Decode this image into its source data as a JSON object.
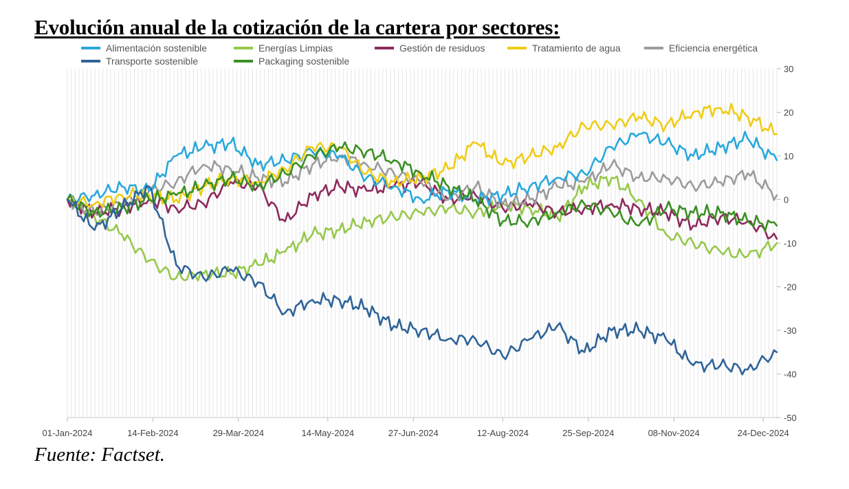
{
  "title": "Evolución anual de la cotización de la cartera por sectores:",
  "source": "Fuente: Factset.",
  "chart_data": {
    "type": "line",
    "title": "",
    "xlabel": "",
    "ylabel": "",
    "ylim": [
      -50,
      30
    ],
    "y_ticks": [
      30,
      20,
      10,
      0,
      -10,
      -20,
      -30,
      -40,
      -50
    ],
    "x_ticks": [
      "01-Jan-2024",
      "14-Feb-2024",
      "29-Mar-2024",
      "14-May-2024",
      "27-Jun-2024",
      "12-Aug-2024",
      "25-Sep-2024",
      "08-Nov-2024",
      "24-Dec-2024"
    ],
    "x_range": [
      "01-Jan-2024",
      "31-Dec-2024"
    ],
    "grid": "vertical",
    "legend_position": "top",
    "x": [
      "01-Jan-2024",
      "15-Jan-2024",
      "29-Jan-2024",
      "12-Feb-2024",
      "26-Feb-2024",
      "11-Mar-2024",
      "25-Mar-2024",
      "08-Apr-2024",
      "22-Apr-2024",
      "06-May-2024",
      "20-May-2024",
      "03-Jun-2024",
      "17-Jun-2024",
      "01-Jul-2024",
      "15-Jul-2024",
      "29-Jul-2024",
      "12-Aug-2024",
      "26-Aug-2024",
      "09-Sep-2024",
      "23-Sep-2024",
      "07-Oct-2024",
      "21-Oct-2024",
      "04-Nov-2024",
      "18-Nov-2024",
      "02-Dec-2024",
      "16-Dec-2024",
      "31-Dec-2024"
    ],
    "series": [
      {
        "name": "Alimentación sostenible",
        "color": "#29a8dd",
        "values": [
          0,
          1,
          3,
          2,
          10,
          12,
          13,
          8,
          9,
          11,
          10,
          5,
          3,
          0,
          2,
          0,
          1,
          3,
          5,
          6,
          12,
          15,
          13,
          10,
          12,
          14,
          9
        ]
      },
      {
        "name": "Energías Limpias",
        "color": "#96c84b",
        "values": [
          0,
          -4,
          -8,
          -14,
          -18,
          -17,
          -17,
          -15,
          -12,
          -8,
          -7,
          -5,
          -4,
          -3,
          -2,
          -3,
          -1,
          -2,
          -4,
          3,
          5,
          0,
          -8,
          -10,
          -12,
          -13,
          -10
        ]
      },
      {
        "name": "Gestión de residuos",
        "color": "#8c2a5d",
        "values": [
          0,
          -3,
          -2,
          0,
          -2,
          -1,
          4,
          3,
          -5,
          1,
          3,
          2,
          3,
          4,
          0,
          1,
          -2,
          -1,
          -3,
          -2,
          -1,
          -2,
          -3,
          -6,
          -4,
          -5,
          -9
        ]
      },
      {
        "name": "Tratamiento de agua",
        "color": "#f0cc15",
        "values": [
          0,
          -1,
          1,
          1,
          0,
          3,
          5,
          4,
          7,
          12,
          12,
          6,
          4,
          5,
          7,
          13,
          8,
          10,
          12,
          17,
          17,
          19,
          17,
          20,
          21,
          19,
          15
        ]
      },
      {
        "name": "Eficiencia energética",
        "color": "#9b9b9b",
        "values": [
          0,
          -3,
          -1,
          2,
          4,
          8,
          7,
          5,
          4,
          8,
          10,
          8,
          6,
          4,
          0,
          3,
          -1,
          0,
          3,
          4,
          8,
          5,
          5,
          3,
          4,
          6,
          1
        ]
      },
      {
        "name": "Transporte sostenible",
        "color": "#2e6398",
        "values": [
          0,
          -7,
          -2,
          3,
          -15,
          -18,
          -16,
          -19,
          -26,
          -23,
          -23,
          -25,
          -29,
          -30,
          -32,
          -32,
          -36,
          -32,
          -29,
          -35,
          -30,
          -30,
          -32,
          -38,
          -38,
          -39,
          -35
        ]
      },
      {
        "name": "Packaging sostenible",
        "color": "#3a8f23",
        "values": [
          0,
          -3,
          -2,
          0,
          1,
          3,
          5,
          3,
          6,
          10,
          12,
          11,
          9,
          6,
          3,
          0,
          -5,
          -5,
          -3,
          -1,
          -3,
          -6,
          -2,
          -3,
          -3,
          -5,
          -6
        ]
      }
    ]
  }
}
